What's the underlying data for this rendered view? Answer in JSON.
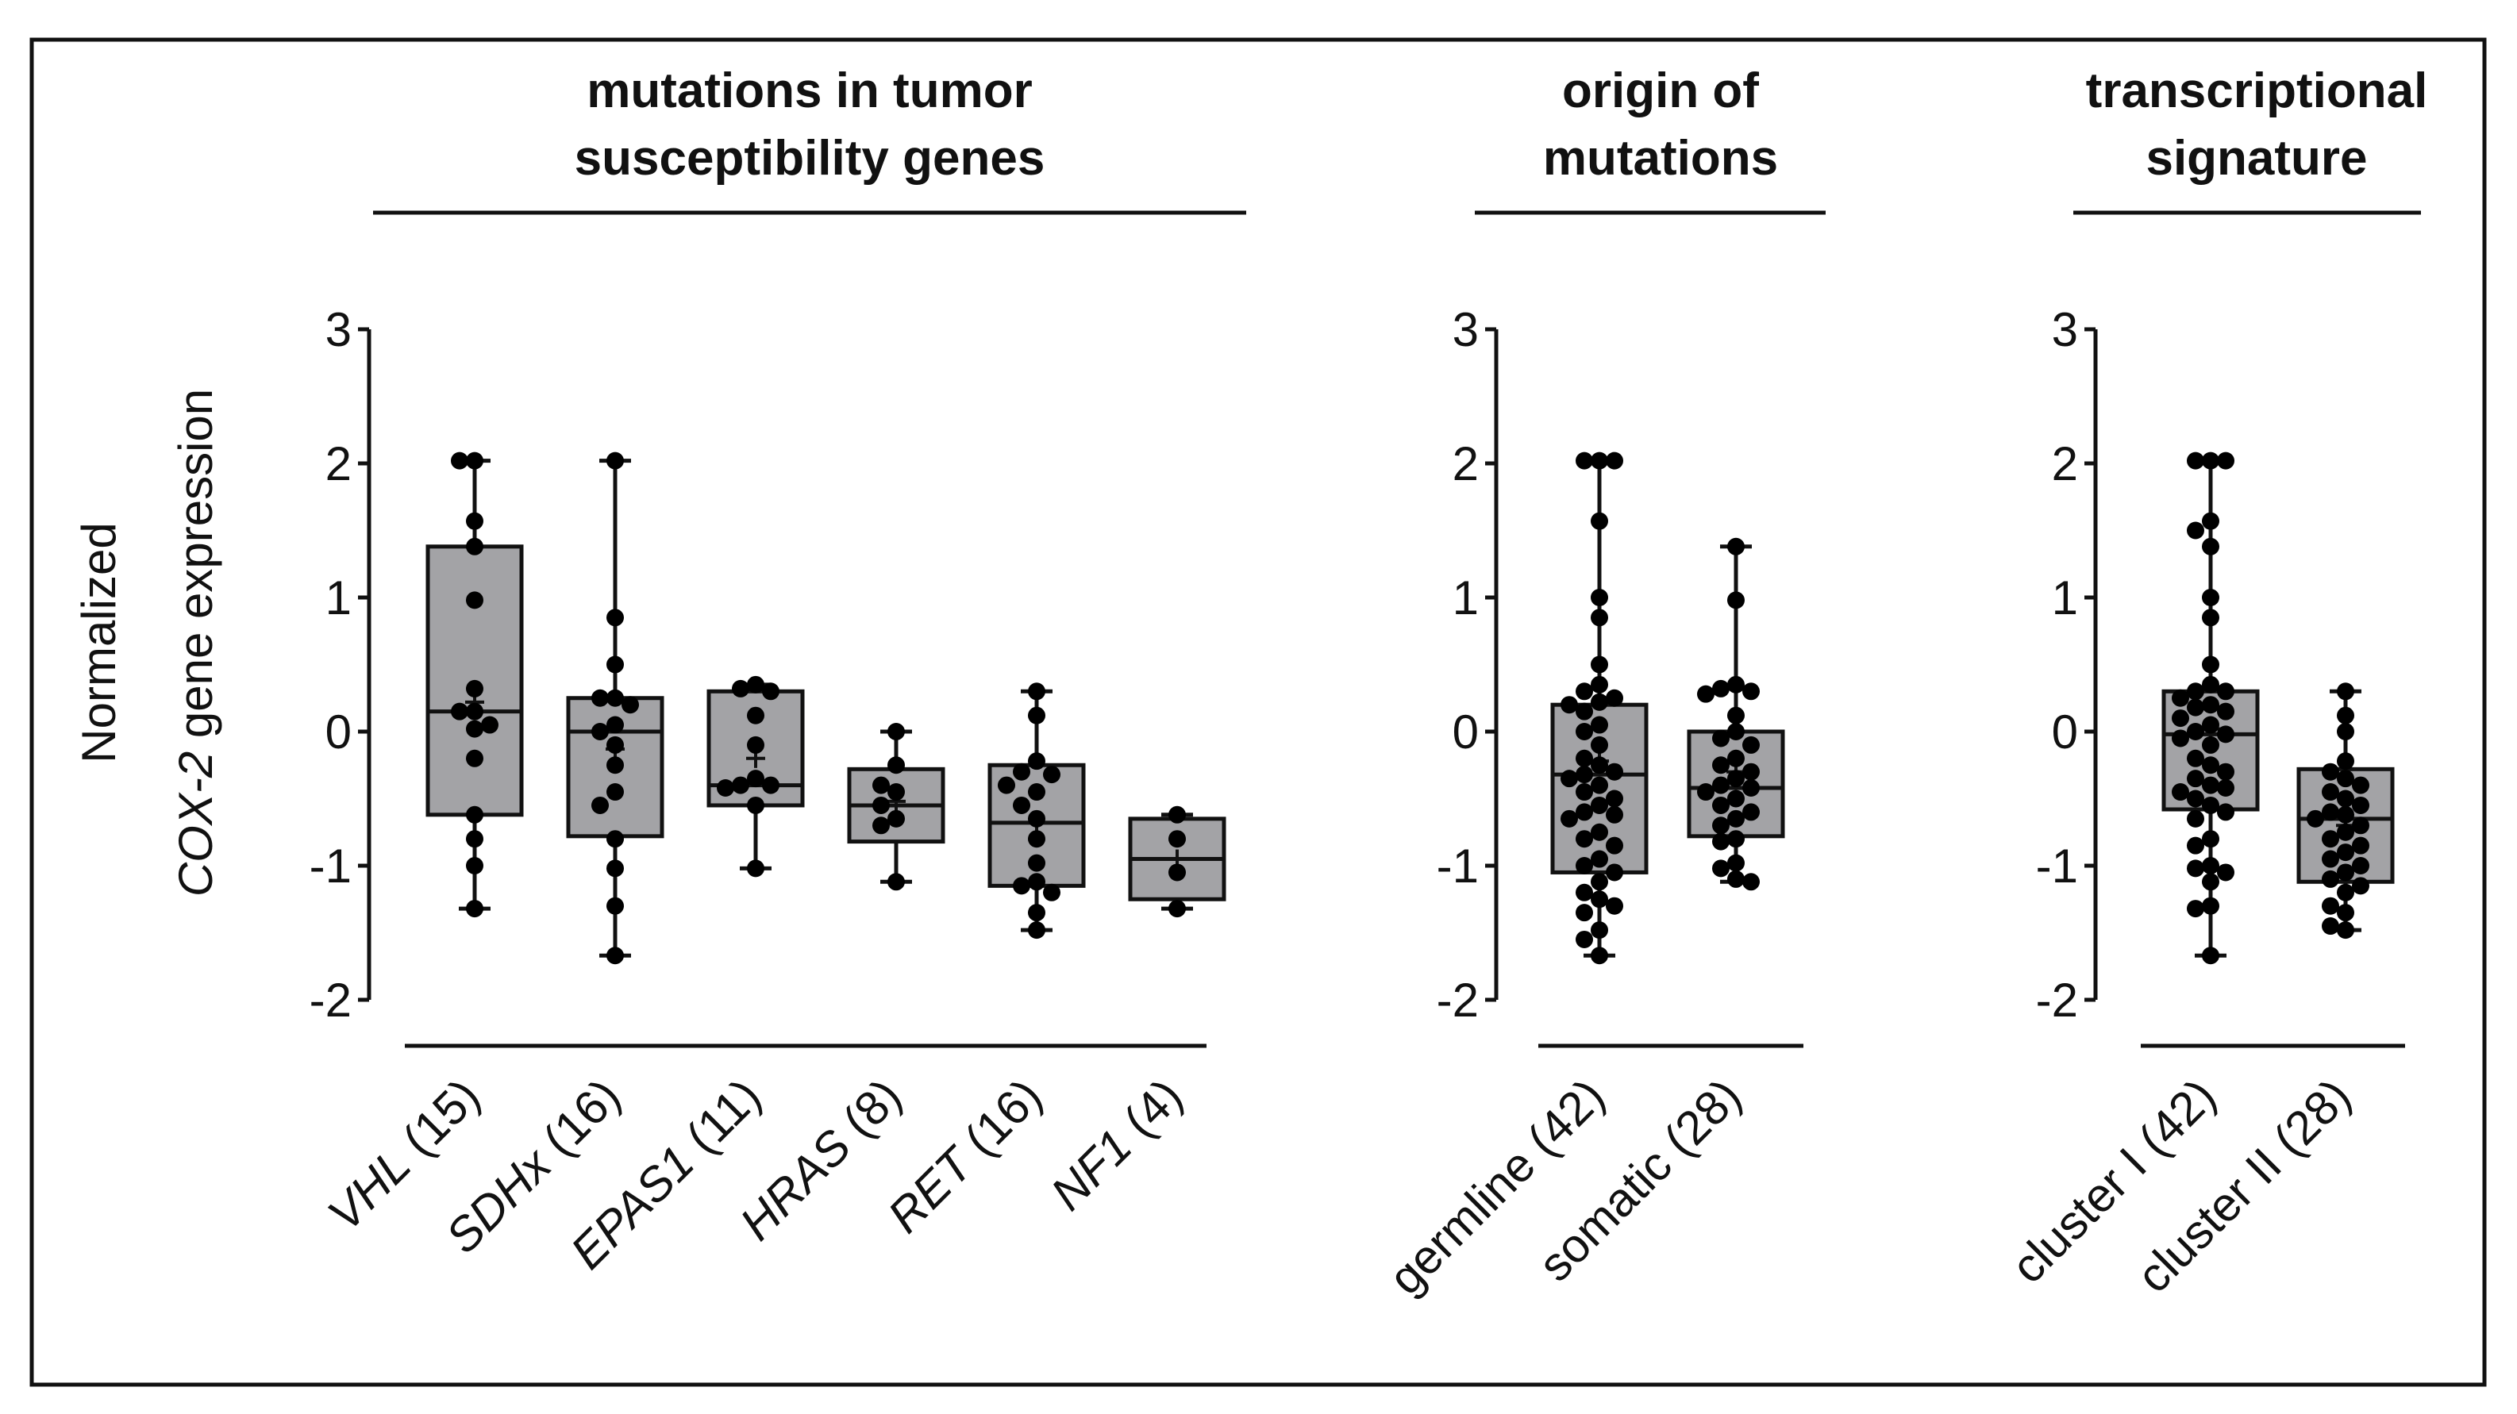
{
  "figure": {
    "ylabel": {
      "line1": "Normalized",
      "line2_italic": "COX-2",
      "line2_rest": " gene expression"
    }
  },
  "chart_data": [
    {
      "type": "box",
      "title": [
        "mutations in tumor",
        "susceptibility genes"
      ],
      "ylim": [
        -2,
        3
      ],
      "yticks": [
        "3",
        "2",
        "1",
        "0",
        "-1",
        "-2"
      ],
      "categories": [
        {
          "name_italic": "VHL",
          "count": " (15)",
          "min": -1.32,
          "q1": -0.62,
          "median": 0.15,
          "q3": 1.38,
          "max": 2.02,
          "mean": 0.22,
          "points": [
            2.02,
            2.02,
            1.57,
            1.38,
            0.98,
            0.32,
            0.15,
            0.15,
            0.02,
            -0.2,
            -0.62,
            -0.8,
            -1.0,
            -1.32,
            0.05
          ]
        },
        {
          "name_italic": "SDHx",
          "count": " (16)",
          "min": -1.67,
          "q1": -0.78,
          "median": 0.0,
          "q3": 0.25,
          "max": 2.02,
          "mean": -0.13,
          "points": [
            2.02,
            0.85,
            0.5,
            0.25,
            0.25,
            0.05,
            0.0,
            -0.1,
            -0.25,
            -0.45,
            -0.55,
            -0.8,
            -1.02,
            -1.3,
            -1.67,
            0.2
          ]
        },
        {
          "name_italic": "EPAS1",
          "count": " (11)",
          "min": -1.02,
          "q1": -0.55,
          "median": -0.4,
          "q3": 0.3,
          "max": 0.35,
          "mean": -0.2,
          "points": [
            0.35,
            0.32,
            0.3,
            0.12,
            -0.1,
            -0.35,
            -0.4,
            -0.4,
            -0.42,
            -0.55,
            -1.02
          ]
        },
        {
          "name_italic": "HRAS",
          "count": " (8)",
          "min": -1.12,
          "q1": -0.82,
          "median": -0.55,
          "q3": -0.28,
          "max": 0.0,
          "mean": -0.52,
          "points": [
            0.0,
            -0.25,
            -0.45,
            -0.55,
            -0.65,
            -0.7,
            -1.12,
            -0.4
          ]
        },
        {
          "name_italic": "RET",
          "count": " (16)",
          "min": -1.48,
          "q1": -1.15,
          "median": -0.68,
          "q3": -0.25,
          "max": 0.3,
          "mean": -0.68,
          "points": [
            0.3,
            0.12,
            -0.22,
            -0.3,
            -0.32,
            -0.45,
            -0.55,
            -0.65,
            -0.8,
            -0.98,
            -1.12,
            -1.15,
            -1.2,
            -1.35,
            -1.48,
            -0.4
          ]
        },
        {
          "name_italic": "NF1",
          "count": " (4)",
          "min": -1.32,
          "q1": -1.25,
          "median": -0.95,
          "q3": -0.65,
          "max": -0.62,
          "mean": -0.95,
          "points": [
            -0.62,
            -0.8,
            -1.05,
            -1.32
          ]
        }
      ]
    },
    {
      "type": "box",
      "title": [
        "origin of",
        "mutations"
      ],
      "ylim": [
        -2,
        3
      ],
      "yticks": [
        "3",
        "2",
        "1",
        "0",
        "-1",
        "-2"
      ],
      "categories": [
        {
          "name": "germline",
          "count": " (42)",
          "min": -1.67,
          "q1": -1.05,
          "median": -0.32,
          "q3": 0.2,
          "max": 2.02,
          "mean": -0.22,
          "points": [
            2.02,
            2.02,
            2.02,
            1.57,
            1.0,
            0.85,
            0.5,
            0.35,
            0.3,
            0.25,
            0.22,
            0.2,
            0.15,
            0.05,
            0.0,
            -0.1,
            -0.2,
            -0.25,
            -0.3,
            -0.32,
            -0.35,
            -0.4,
            -0.45,
            -0.5,
            -0.55,
            -0.6,
            -0.62,
            -0.65,
            -0.75,
            -0.8,
            -0.85,
            -0.95,
            -1.0,
            -1.05,
            -1.12,
            -1.2,
            -1.25,
            -1.3,
            -1.35,
            -1.48,
            -1.55,
            -1.67
          ]
        },
        {
          "name": "somatic",
          "count": " (28)",
          "min": -1.12,
          "q1": -0.78,
          "median": -0.42,
          "q3": 0.0,
          "max": 1.38,
          "mean": -0.3,
          "points": [
            1.38,
            0.98,
            0.35,
            0.32,
            0.3,
            0.28,
            0.12,
            0.0,
            -0.05,
            -0.1,
            -0.2,
            -0.25,
            -0.3,
            -0.35,
            -0.4,
            -0.42,
            -0.45,
            -0.5,
            -0.55,
            -0.6,
            -0.65,
            -0.7,
            -0.8,
            -0.82,
            -0.98,
            -1.02,
            -1.1,
            -1.12
          ]
        }
      ]
    },
    {
      "type": "box",
      "title": [
        "transcriptional",
        "signature"
      ],
      "ylim": [
        -2,
        3
      ],
      "yticks": [
        "3",
        "2",
        "1",
        "0",
        "-1",
        "-2"
      ],
      "categories": [
        {
          "name": "cluster I",
          "count": " (42)",
          "min": -1.67,
          "q1": -0.58,
          "median": -0.02,
          "q3": 0.3,
          "max": 2.02,
          "mean": 0.02,
          "points": [
            2.02,
            2.02,
            2.02,
            1.57,
            1.5,
            1.38,
            1.0,
            0.85,
            0.5,
            0.35,
            0.3,
            0.3,
            0.25,
            0.2,
            0.18,
            0.15,
            0.1,
            0.05,
            0.0,
            -0.02,
            -0.05,
            -0.1,
            -0.2,
            -0.25,
            -0.3,
            -0.35,
            -0.4,
            -0.42,
            -0.45,
            -0.5,
            -0.55,
            -0.6,
            -0.65,
            -0.8,
            -0.85,
            -1.0,
            -1.02,
            -1.05,
            -1.12,
            -1.3,
            -1.32,
            -1.67
          ]
        },
        {
          "name": "cluster II",
          "count": " (28)",
          "min": -1.48,
          "q1": -1.12,
          "median": -0.65,
          "q3": -0.28,
          "max": 0.3,
          "mean": -0.7,
          "points": [
            0.3,
            0.12,
            0.0,
            -0.22,
            -0.3,
            -0.35,
            -0.4,
            -0.45,
            -0.5,
            -0.55,
            -0.6,
            -0.62,
            -0.65,
            -0.7,
            -0.75,
            -0.8,
            -0.85,
            -0.9,
            -0.95,
            -1.0,
            -1.05,
            -1.1,
            -1.15,
            -1.2,
            -1.3,
            -1.35,
            -1.45,
            -1.48
          ]
        }
      ]
    }
  ]
}
